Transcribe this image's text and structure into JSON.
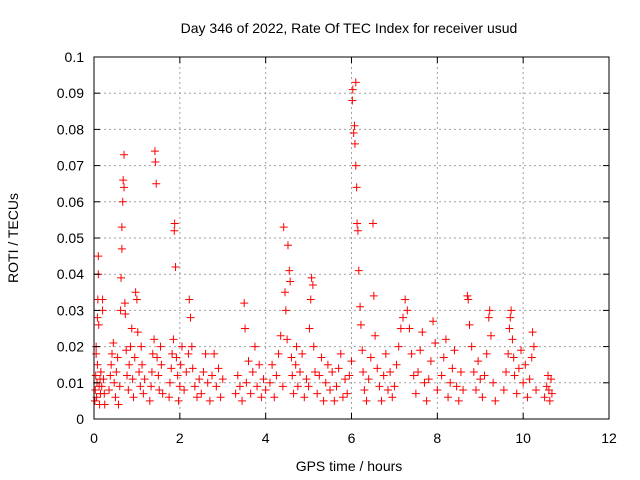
{
  "chart_data": {
    "type": "scatter",
    "title": "Day 346 of 2022, Rate Of TEC Index for receiver usud",
    "xlabel": "GPS time / hours",
    "ylabel": "ROTI / TECUs",
    "xlim": [
      0,
      12
    ],
    "ylim": [
      0,
      0.1
    ],
    "xticks": [
      0,
      2,
      4,
      6,
      8,
      10,
      12
    ],
    "yticks": [
      0,
      0.01,
      0.02,
      0.03,
      0.04,
      0.05,
      0.06,
      0.07,
      0.08,
      0.09,
      0.1
    ],
    "xtick_labels": [
      "0",
      "2",
      "4",
      "6",
      "8",
      "10",
      "12"
    ],
    "ytick_labels": [
      "0",
      "0.01",
      "0.02",
      "0.03",
      "0.04",
      "0.05",
      "0.06",
      "0.07",
      "0.08",
      "0.09",
      "0.1"
    ],
    "grid": true,
    "marker": "+",
    "color": "#ff0000",
    "series": [
      {
        "points": [
          [
            0.02,
            0.005
          ],
          [
            0.03,
            0.008
          ],
          [
            0.04,
            0.012
          ],
          [
            0.05,
            0.018
          ],
          [
            0.05,
            0.02
          ],
          [
            0.06,
            0.006
          ],
          [
            0.07,
            0.01
          ],
          [
            0.08,
            0.015
          ],
          [
            0.08,
            0.028
          ],
          [
            0.09,
            0.033
          ],
          [
            0.1,
            0.04
          ],
          [
            0.1,
            0.045
          ],
          [
            0.11,
            0.026
          ],
          [
            0.12,
            0.009
          ],
          [
            0.13,
            0.004
          ],
          [
            0.14,
            0.011
          ],
          [
            0.15,
            0.007
          ],
          [
            0.16,
            0.013
          ],
          [
            0.18,
            0.009
          ],
          [
            0.2,
            0.03
          ],
          [
            0.2,
            0.033
          ],
          [
            0.22,
            0.011
          ],
          [
            0.24,
            0.007
          ],
          [
            0.25,
            0.004
          ],
          [
            0.35,
            0.008
          ],
          [
            0.38,
            0.012
          ],
          [
            0.4,
            0.015
          ],
          [
            0.42,
            0.018
          ],
          [
            0.45,
            0.021
          ],
          [
            0.47,
            0.01
          ],
          [
            0.5,
            0.006
          ],
          [
            0.52,
            0.013
          ],
          [
            0.55,
            0.017
          ],
          [
            0.57,
            0.004
          ],
          [
            0.6,
            0.009
          ],
          [
            0.62,
            0.03
          ],
          [
            0.63,
            0.039
          ],
          [
            0.65,
            0.047
          ],
          [
            0.65,
            0.053
          ],
          [
            0.67,
            0.06
          ],
          [
            0.68,
            0.066
          ],
          [
            0.7,
            0.073
          ],
          [
            0.7,
            0.064
          ],
          [
            0.72,
            0.032
          ],
          [
            0.73,
            0.029
          ],
          [
            0.75,
            0.019
          ],
          [
            0.77,
            0.012
          ],
          [
            0.8,
            0.008
          ],
          [
            0.82,
            0.015
          ],
          [
            0.85,
            0.02
          ],
          [
            0.88,
            0.025
          ],
          [
            0.9,
            0.011
          ],
          [
            0.92,
            0.006
          ],
          [
            0.95,
            0.017
          ],
          [
            0.97,
            0.035
          ],
          [
            1.0,
            0.033
          ],
          [
            1.02,
            0.024
          ],
          [
            1.05,
            0.013
          ],
          [
            1.08,
            0.009
          ],
          [
            1.1,
            0.02
          ],
          [
            1.12,
            0.015
          ],
          [
            1.15,
            0.007
          ],
          [
            1.18,
            0.011
          ],
          [
            1.3,
            0.005
          ],
          [
            1.33,
            0.009
          ],
          [
            1.35,
            0.013
          ],
          [
            1.37,
            0.018
          ],
          [
            1.4,
            0.022
          ],
          [
            1.42,
            0.074
          ],
          [
            1.43,
            0.071
          ],
          [
            1.45,
            0.065
          ],
          [
            1.47,
            0.017
          ],
          [
            1.5,
            0.012
          ],
          [
            1.52,
            0.008
          ],
          [
            1.55,
            0.02
          ],
          [
            1.57,
            0.015
          ],
          [
            1.6,
            0.007
          ],
          [
            1.75,
            0.006
          ],
          [
            1.77,
            0.01
          ],
          [
            1.8,
            0.014
          ],
          [
            1.82,
            0.018
          ],
          [
            1.85,
            0.022
          ],
          [
            1.87,
            0.052
          ],
          [
            1.88,
            0.054
          ],
          [
            1.9,
            0.042
          ],
          [
            1.92,
            0.017
          ],
          [
            1.95,
            0.012
          ],
          [
            1.97,
            0.005
          ],
          [
            2.0,
            0.009
          ],
          [
            2.02,
            0.015
          ],
          [
            2.05,
            0.02
          ],
          [
            2.1,
            0.008
          ],
          [
            2.15,
            0.013
          ],
          [
            2.2,
            0.018
          ],
          [
            2.22,
            0.033
          ],
          [
            2.25,
            0.028
          ],
          [
            2.28,
            0.02
          ],
          [
            2.3,
            0.014
          ],
          [
            2.35,
            0.009
          ],
          [
            2.4,
            0.006
          ],
          [
            2.45,
            0.011
          ],
          [
            2.5,
            0.007
          ],
          [
            2.55,
            0.013
          ],
          [
            2.6,
            0.018
          ],
          [
            2.65,
            0.01
          ],
          [
            2.7,
            0.005
          ],
          [
            2.75,
            0.012
          ],
          [
            2.8,
            0.018
          ],
          [
            2.85,
            0.009
          ],
          [
            2.9,
            0.014
          ],
          [
            2.95,
            0.006
          ],
          [
            3.0,
            0.011
          ],
          [
            3.3,
            0.007
          ],
          [
            3.35,
            0.012
          ],
          [
            3.4,
            0.009
          ],
          [
            3.45,
            0.005
          ],
          [
            3.5,
            0.032
          ],
          [
            3.52,
            0.025
          ],
          [
            3.55,
            0.01
          ],
          [
            3.6,
            0.016
          ],
          [
            3.65,
            0.007
          ],
          [
            3.7,
            0.013
          ],
          [
            3.75,
            0.02
          ],
          [
            3.8,
            0.009
          ],
          [
            3.85,
            0.015
          ],
          [
            3.9,
            0.006
          ],
          [
            3.95,
            0.011
          ],
          [
            4.0,
            0.008
          ],
          [
            4.1,
            0.01
          ],
          [
            4.15,
            0.015
          ],
          [
            4.2,
            0.006
          ],
          [
            4.25,
            0.012
          ],
          [
            4.3,
            0.018
          ],
          [
            4.35,
            0.023
          ],
          [
            4.4,
            0.009
          ],
          [
            4.42,
            0.053
          ],
          [
            4.45,
            0.035
          ],
          [
            4.47,
            0.03
          ],
          [
            4.5,
            0.022
          ],
          [
            4.52,
            0.048
          ],
          [
            4.55,
            0.041
          ],
          [
            4.57,
            0.038
          ],
          [
            4.6,
            0.017
          ],
          [
            4.62,
            0.012
          ],
          [
            4.65,
            0.007
          ],
          [
            4.7,
            0.015
          ],
          [
            4.72,
            0.02
          ],
          [
            4.75,
            0.009
          ],
          [
            4.8,
            0.013
          ],
          [
            4.85,
            0.018
          ],
          [
            4.9,
            0.006
          ],
          [
            4.95,
            0.011
          ],
          [
            5.0,
            0.009
          ],
          [
            5.02,
            0.025
          ],
          [
            5.05,
            0.033
          ],
          [
            5.07,
            0.039
          ],
          [
            5.1,
            0.037
          ],
          [
            5.12,
            0.02
          ],
          [
            5.15,
            0.013
          ],
          [
            5.2,
            0.007
          ],
          [
            5.25,
            0.012
          ],
          [
            5.3,
            0.017
          ],
          [
            5.35,
            0.005
          ],
          [
            5.4,
            0.01
          ],
          [
            5.45,
            0.015
          ],
          [
            5.5,
            0.008
          ],
          [
            5.55,
            0.013
          ],
          [
            5.6,
            0.005
          ],
          [
            5.65,
            0.009
          ],
          [
            5.7,
            0.014
          ],
          [
            5.75,
            0.018
          ],
          [
            5.8,
            0.006
          ],
          [
            5.85,
            0.011
          ],
          [
            5.9,
            0.007
          ],
          [
            5.95,
            0.012
          ],
          [
            6.0,
            0.016
          ],
          [
            6.02,
            0.088
          ],
          [
            6.03,
            0.091
          ],
          [
            6.05,
            0.079
          ],
          [
            6.07,
            0.081
          ],
          [
            6.08,
            0.076
          ],
          [
            6.1,
            0.093
          ],
          [
            6.1,
            0.07
          ],
          [
            6.12,
            0.064
          ],
          [
            6.13,
            0.054
          ],
          [
            6.15,
            0.052
          ],
          [
            6.17,
            0.041
          ],
          [
            6.2,
            0.031
          ],
          [
            6.22,
            0.026
          ],
          [
            6.25,
            0.019
          ],
          [
            6.27,
            0.013
          ],
          [
            6.3,
            0.008
          ],
          [
            6.35,
            0.005
          ],
          [
            6.4,
            0.011
          ],
          [
            6.45,
            0.017
          ],
          [
            6.5,
            0.054
          ],
          [
            6.52,
            0.034
          ],
          [
            6.55,
            0.023
          ],
          [
            6.6,
            0.014
          ],
          [
            6.65,
            0.009
          ],
          [
            6.7,
            0.005
          ],
          [
            6.75,
            0.012
          ],
          [
            6.8,
            0.018
          ],
          [
            6.85,
            0.008
          ],
          [
            6.9,
            0.013
          ],
          [
            6.95,
            0.006
          ],
          [
            7.0,
            0.009
          ],
          [
            7.05,
            0.015
          ],
          [
            7.1,
            0.02
          ],
          [
            7.15,
            0.025
          ],
          [
            7.2,
            0.028
          ],
          [
            7.25,
            0.033
          ],
          [
            7.3,
            0.03
          ],
          [
            7.35,
            0.025
          ],
          [
            7.4,
            0.018
          ],
          [
            7.45,
            0.012
          ],
          [
            7.5,
            0.007
          ],
          [
            7.55,
            0.013
          ],
          [
            7.6,
            0.019
          ],
          [
            7.65,
            0.024
          ],
          [
            7.7,
            0.01
          ],
          [
            7.75,
            0.005
          ],
          [
            7.8,
            0.011
          ],
          [
            7.85,
            0.016
          ],
          [
            7.9,
            0.027
          ],
          [
            7.95,
            0.021
          ],
          [
            8.0,
            0.008
          ],
          [
            8.1,
            0.012
          ],
          [
            8.15,
            0.017
          ],
          [
            8.2,
            0.022
          ],
          [
            8.25,
            0.006
          ],
          [
            8.3,
            0.01
          ],
          [
            8.35,
            0.014
          ],
          [
            8.4,
            0.019
          ],
          [
            8.45,
            0.009
          ],
          [
            8.5,
            0.005
          ],
          [
            8.55,
            0.013
          ],
          [
            8.6,
            0.008
          ],
          [
            8.7,
            0.034
          ],
          [
            8.72,
            0.033
          ],
          [
            8.75,
            0.026
          ],
          [
            8.8,
            0.02
          ],
          [
            8.85,
            0.013
          ],
          [
            8.9,
            0.008
          ],
          [
            8.95,
            0.016
          ],
          [
            9.0,
            0.011
          ],
          [
            9.05,
            0.006
          ],
          [
            9.1,
            0.012
          ],
          [
            9.15,
            0.018
          ],
          [
            9.2,
            0.028
          ],
          [
            9.22,
            0.03
          ],
          [
            9.25,
            0.023
          ],
          [
            9.3,
            0.01
          ],
          [
            9.35,
            0.005
          ],
          [
            9.55,
            0.008
          ],
          [
            9.6,
            0.013
          ],
          [
            9.65,
            0.018
          ],
          [
            9.68,
            0.025
          ],
          [
            9.7,
            0.028
          ],
          [
            9.72,
            0.03
          ],
          [
            9.75,
            0.022
          ],
          [
            9.78,
            0.017
          ],
          [
            9.8,
            0.012
          ],
          [
            9.85,
            0.007
          ],
          [
            9.9,
            0.014
          ],
          [
            9.95,
            0.019
          ],
          [
            10.0,
            0.01
          ],
          [
            10.05,
            0.015
          ],
          [
            10.1,
            0.006
          ],
          [
            10.15,
            0.011
          ],
          [
            10.2,
            0.017
          ],
          [
            10.22,
            0.024
          ],
          [
            10.25,
            0.02
          ],
          [
            10.3,
            0.008
          ],
          [
            10.5,
            0.006
          ],
          [
            10.55,
            0.009
          ],
          [
            10.58,
            0.012
          ],
          [
            10.6,
            0.008
          ],
          [
            10.62,
            0.005
          ],
          [
            10.65,
            0.011
          ],
          [
            10.67,
            0.007
          ]
        ]
      }
    ]
  }
}
